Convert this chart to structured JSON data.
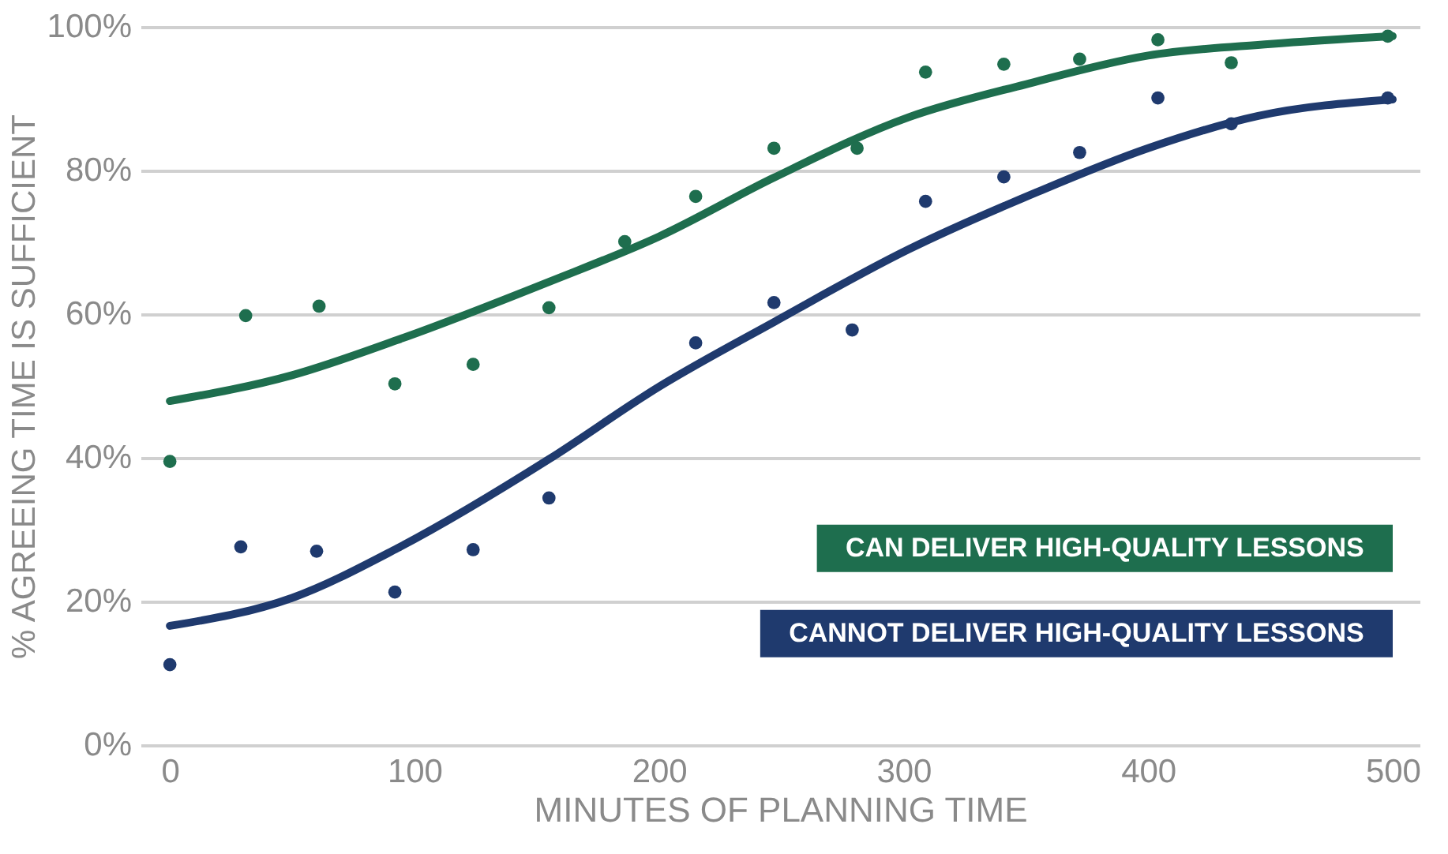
{
  "chart_data": {
    "type": "scatter",
    "xlabel": "MINUTES OF PLANNING TIME",
    "ylabel": "% AGREEING TIME IS SUFFICIENT",
    "xlim": [
      -12,
      511
    ],
    "xticks": [
      0,
      100,
      200,
      300,
      400,
      500
    ],
    "ylim": [
      0,
      100
    ],
    "yticks": [
      {
        "value": 0,
        "label": "0%"
      },
      {
        "value": 20,
        "label": "20%"
      },
      {
        "value": 40,
        "label": "40%"
      },
      {
        "value": 60,
        "label": "60%"
      },
      {
        "value": 80,
        "label": "80%"
      },
      {
        "value": 100,
        "label": "100%"
      }
    ],
    "grid": "y",
    "legend": "bottom right",
    "marker": "circle",
    "series": [
      {
        "name": "CAN DELIVER HIGH-QUALITY LESSONS",
        "color": "#1e6e4e",
        "x": [
          0,
          31,
          61,
          92,
          124,
          155,
          186,
          215,
          247,
          281,
          309,
          341,
          372,
          404,
          434,
          498
        ],
        "values": [
          39.5,
          59.8,
          61.1,
          50.3,
          53,
          60.9,
          70.1,
          76.4,
          83.1,
          83.1,
          93.7,
          94.8,
          95.5,
          98.2,
          95,
          98.7
        ]
      },
      {
        "name": "CANNOT DELIVER HIGH-QUALITY LESSONS",
        "color": "#1f3a6e",
        "x": [
          0,
          29,
          60,
          92,
          124,
          155,
          215,
          247,
          279,
          309,
          341,
          372,
          404,
          434,
          498
        ],
        "values": [
          11.2,
          27.6,
          27,
          21.3,
          27.2,
          34.4,
          56,
          61.6,
          57.8,
          75.7,
          79.1,
          82.5,
          90.1,
          86.5,
          90.1
        ]
      },
      {
        "type": "line",
        "marker": "none",
        "color": "#1e6e4e",
        "x": [
          0,
          50,
          93,
          155,
          200,
          247,
          302,
          350,
          400,
          450,
          500
        ],
        "values": [
          47.9,
          51.5,
          56.4,
          64.5,
          70.8,
          79,
          87.4,
          92,
          96,
          97.6,
          98.7
        ]
      },
      {
        "type": "line",
        "marker": "none",
        "color": "#1f3a6e",
        "x": [
          0,
          50,
          93,
          155,
          200,
          247,
          302,
          354,
          400,
          445,
          500
        ],
        "values": [
          16.6,
          20.5,
          27.4,
          39.8,
          49.9,
          58.9,
          69,
          76.9,
          83.1,
          87.6,
          89.9
        ]
      }
    ]
  }
}
